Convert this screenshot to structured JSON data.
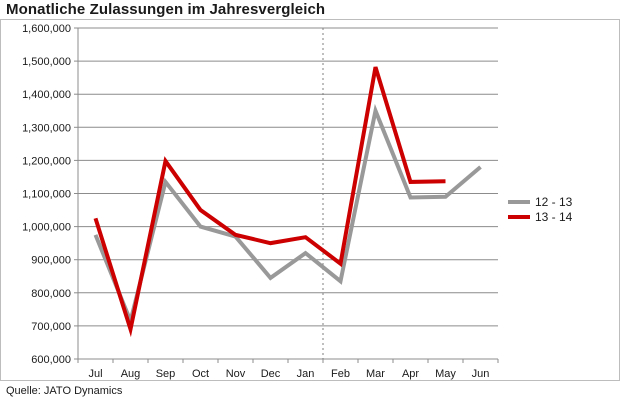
{
  "title": "Monatliche Zulassungen im Jahresvergleich",
  "source": "Quelle: JATO Dynamics",
  "chart_data": {
    "type": "line",
    "title": "Monatliche Zulassungen im Jahresvergleich",
    "xlabel": "",
    "ylabel": "",
    "categories": [
      "Jul",
      "Aug",
      "Sep",
      "Oct",
      "Nov",
      "Dec",
      "Jan",
      "Feb",
      "Mar",
      "Apr",
      "May",
      "Jun"
    ],
    "ylim": [
      600000,
      1600000
    ],
    "yticks": [
      600000,
      700000,
      800000,
      900000,
      1000000,
      1100000,
      1200000,
      1300000,
      1400000,
      1500000,
      1600000
    ],
    "ytick_labels": [
      "600,000",
      "700,000",
      "800,000",
      "900,000",
      "1,000,000",
      "1,100,000",
      "1,200,000",
      "1,300,000",
      "1,400,000",
      "1,500,000",
      "1,600,000"
    ],
    "grid": "horizontal",
    "divider_after_category": "Jan",
    "legend_position": "right",
    "series": [
      {
        "name": "12 - 13",
        "color": "#999999",
        "values": [
          975000,
          715000,
          1135000,
          1000000,
          970000,
          845000,
          920000,
          835000,
          1350000,
          1088000,
          1090000,
          1180000
        ]
      },
      {
        "name": "13 - 14",
        "color": "#cc0000",
        "values": [
          1025000,
          690000,
          1198000,
          1050000,
          975000,
          950000,
          968000,
          888000,
          1482000,
          1135000,
          1137000,
          null
        ]
      }
    ]
  }
}
